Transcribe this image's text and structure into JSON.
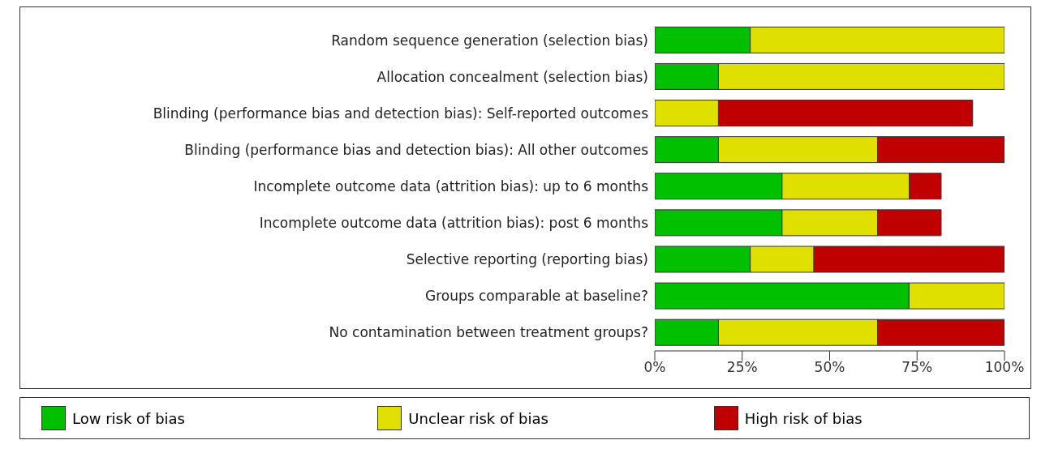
{
  "chart_data": {
    "type": "bar",
    "orientation": "horizontal",
    "stacked": true,
    "categories": [
      "Random sequence generation (selection bias)",
      "Allocation concealment (selection bias)",
      "Blinding (performance bias and detection bias): Self-reported outcomes",
      "Blinding (performance bias and detection bias): All other outcomes",
      "Incomplete outcome data (attrition bias): up to 6 months",
      "Incomplete outcome data (attrition bias): post 6 months",
      "Selective reporting (reporting bias)",
      "Groups comparable at baseline?",
      "No contamination between treatment groups?"
    ],
    "series": [
      {
        "name": "Low risk of bias",
        "color": "#00c000",
        "values": [
          27.3,
          18.2,
          0,
          18.2,
          36.4,
          36.4,
          27.3,
          72.7,
          18.2
        ]
      },
      {
        "name": "Unclear risk of bias",
        "color": "#e0e000",
        "values": [
          72.7,
          81.8,
          18.2,
          45.5,
          36.4,
          27.3,
          18.2,
          27.3,
          45.5
        ]
      },
      {
        "name": "High risk of bias",
        "color": "#c00000",
        "values": [
          0,
          0,
          72.7,
          36.4,
          9.1,
          18.2,
          54.5,
          0,
          36.4
        ]
      }
    ],
    "xlim": [
      0,
      100
    ],
    "xticks": [
      {
        "value": 0,
        "label": "0%"
      },
      {
        "value": 25,
        "label": "25%"
      },
      {
        "value": 50,
        "label": "50%"
      },
      {
        "value": 75,
        "label": "75%"
      },
      {
        "value": 100,
        "label": "100%"
      }
    ],
    "legend": "bottom",
    "grid": false
  }
}
